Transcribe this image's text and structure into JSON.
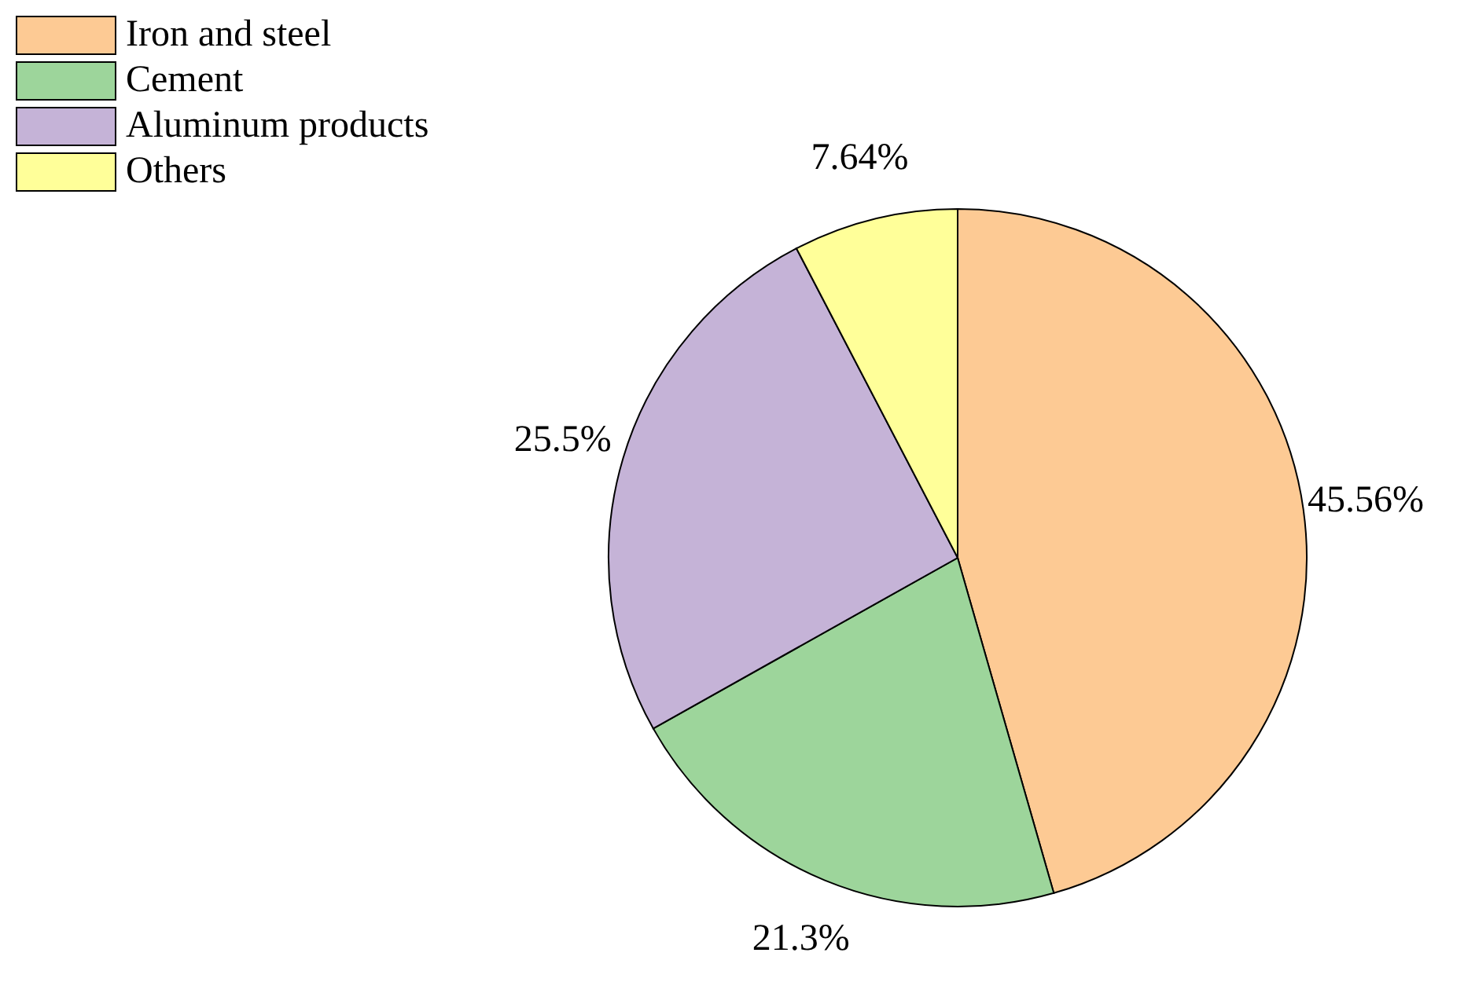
{
  "chart_data": {
    "type": "pie",
    "categories": [
      "Iron and steel",
      "Cement",
      "Aluminum products",
      "Others"
    ],
    "values": [
      45.56,
      21.3,
      25.5,
      7.64
    ],
    "value_labels": [
      "45.56%",
      "21.3%",
      "25.5%",
      "7.64%"
    ],
    "colors": [
      "#fdca94",
      "#9dd59b",
      "#c5b3d7",
      "#ffff99"
    ],
    "legend": "top left"
  }
}
